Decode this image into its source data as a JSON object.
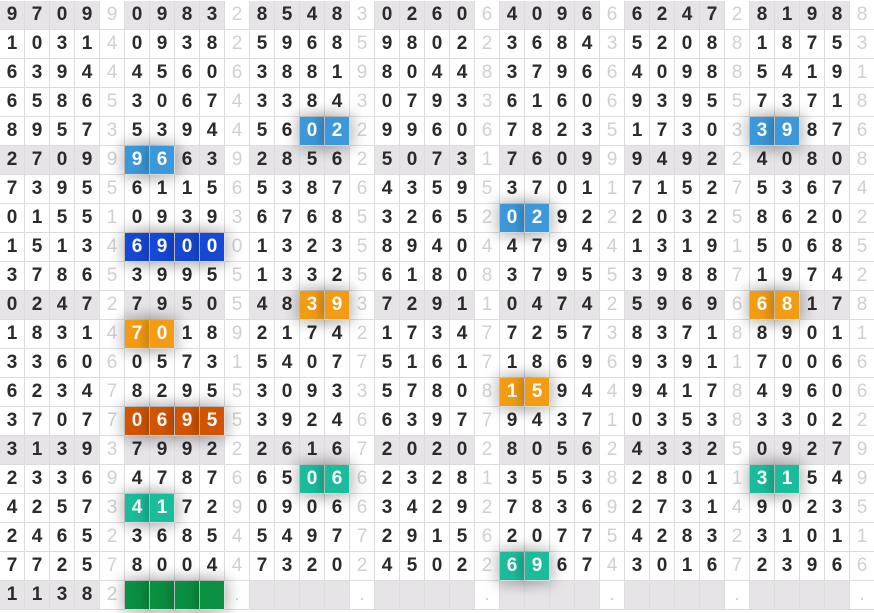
{
  "colors": {
    "blue": "#3a98db",
    "dark_blue": "#1648d8",
    "orange": "#f39c12",
    "dark_orange": "#d35400",
    "teal": "#1abc9c",
    "green": "#0b8f42",
    "band": "#e7e4e7"
  },
  "rows": [
    {
      "groups": [
        "9709",
        "0983",
        "8548",
        "0260",
        "4096",
        "6247",
        "8198"
      ],
      "seps": [
        "9",
        "2",
        "3",
        "6",
        "6",
        "2",
        "8"
      ],
      "band": true
    },
    {
      "groups": [
        "1031",
        "0938",
        "5968",
        "9802",
        "3684",
        "5208",
        "1875"
      ],
      "seps": [
        "4",
        "2",
        "5",
        "2",
        "3",
        "8",
        "3"
      ]
    },
    {
      "groups": [
        "6394",
        "4560",
        "3881",
        "8044",
        "3796",
        "4098",
        "5419"
      ],
      "seps": [
        "4",
        "6",
        "9",
        "8",
        "6",
        "8",
        "1"
      ]
    },
    {
      "groups": [
        "6586",
        "3067",
        "3384",
        "0793",
        "6160",
        "9395",
        "7371"
      ],
      "seps": [
        "5",
        "4",
        "3",
        "3",
        "6",
        "5",
        "8"
      ]
    },
    {
      "groups": [
        "8957",
        "5394",
        "5602",
        "9960",
        "7823",
        "1730",
        "3987"
      ],
      "seps": [
        "3",
        "4",
        "2",
        "6",
        "5",
        "3",
        "6"
      ]
    },
    {
      "groups": [
        "2709",
        "9663",
        "2856",
        "5073",
        "7609",
        "9492",
        "4080"
      ],
      "seps": [
        "9",
        "9",
        "2",
        "1",
        "9",
        "2",
        "8"
      ],
      "band": true
    },
    {
      "groups": [
        "7395",
        "6115",
        "5387",
        "4359",
        "3701",
        "7152",
        "5367"
      ],
      "seps": [
        "5",
        "6",
        "6",
        "5",
        "1",
        "7",
        "4"
      ]
    },
    {
      "groups": [
        "0155",
        "0939",
        "6768",
        "3265",
        "0292",
        "2032",
        "8620"
      ],
      "seps": [
        "1",
        "3",
        "5",
        "2",
        "2",
        "5",
        "2"
      ]
    },
    {
      "groups": [
        "1513",
        "6900",
        "1323",
        "8940",
        "4794",
        "1319",
        "5068"
      ],
      "seps": [
        "4",
        "0",
        "5",
        "4",
        "4",
        "1",
        "5"
      ]
    },
    {
      "groups": [
        "3786",
        "3995",
        "1332",
        "6180",
        "3795",
        "3988",
        "1974"
      ],
      "seps": [
        "5",
        "5",
        "5",
        "8",
        "5",
        "7",
        "2"
      ]
    },
    {
      "groups": [
        "0247",
        "7950",
        "4839",
        "7291",
        "0474",
        "5969",
        "6817"
      ],
      "seps": [
        "2",
        "5",
        "3",
        "1",
        "2",
        "6",
        "8"
      ],
      "band": true
    },
    {
      "groups": [
        "1831",
        "7018",
        "2174",
        "1734",
        "7257",
        "8371",
        "8901"
      ],
      "seps": [
        "4",
        "9",
        "2",
        "7",
        "3",
        "8",
        "1"
      ]
    },
    {
      "groups": [
        "3360",
        "0573",
        "5407",
        "5161",
        "1869",
        "9391",
        "7006"
      ],
      "seps": [
        "6",
        "1",
        "7",
        "7",
        "6",
        "1",
        "6"
      ]
    },
    {
      "groups": [
        "6234",
        "8295",
        "3093",
        "5780",
        "1594",
        "9417",
        "4960"
      ],
      "seps": [
        "7",
        "5",
        "3",
        "8",
        "4",
        "8",
        "6"
      ]
    },
    {
      "groups": [
        "3707",
        "0695",
        "3924",
        "6397",
        "9437",
        "0353",
        "3302"
      ],
      "seps": [
        "7",
        "5",
        "6",
        "7",
        "1",
        "8",
        "2"
      ]
    },
    {
      "groups": [
        "3139",
        "7992",
        "2616",
        "2020",
        "8056",
        "4332",
        "0927"
      ],
      "seps": [
        "3",
        "2",
        "7",
        "2",
        "2",
        "5",
        "9"
      ],
      "band": true
    },
    {
      "groups": [
        "2336",
        "4787",
        "6506",
        "2328",
        "3553",
        "2801",
        "3154"
      ],
      "seps": [
        "9",
        "6",
        "6",
        "1",
        "8",
        "1",
        "9"
      ]
    },
    {
      "groups": [
        "4257",
        "4172",
        "0906",
        "3429",
        "7836",
        "2731",
        "9023"
      ],
      "seps": [
        "3",
        "9",
        "6",
        "2",
        "9",
        "4",
        "5"
      ]
    },
    {
      "groups": [
        "2465",
        "3685",
        "5497",
        "2915",
        "2077",
        "4283",
        "3101"
      ],
      "seps": [
        "2",
        "4",
        "7",
        "6",
        "5",
        "2",
        "1"
      ]
    },
    {
      "groups": [
        "7725",
        "8004",
        "7320",
        "4502",
        "6967",
        "3016",
        "2396"
      ],
      "seps": [
        "7",
        "4",
        "2",
        "2",
        "4",
        "7",
        "6"
      ]
    },
    {
      "groups": [
        "1138",
        "    ",
        "    ",
        "    ",
        "    ",
        "    ",
        "    "
      ],
      "seps": [
        "2",
        ".",
        ".",
        ".",
        ".",
        ".",
        "."
      ],
      "band": true
    }
  ],
  "highlights": [
    {
      "row": 4,
      "group": 2,
      "from": 2,
      "len": 2,
      "color": "blue"
    },
    {
      "row": 4,
      "group": 6,
      "from": 0,
      "len": 2,
      "color": "blue"
    },
    {
      "row": 5,
      "group": 1,
      "from": 0,
      "len": 2,
      "color": "blue"
    },
    {
      "row": 7,
      "group": 4,
      "from": 0,
      "len": 2,
      "color": "blue"
    },
    {
      "row": 8,
      "group": 1,
      "from": 0,
      "len": 4,
      "color": "dark_blue"
    },
    {
      "row": 10,
      "group": 2,
      "from": 2,
      "len": 2,
      "color": "orange"
    },
    {
      "row": 10,
      "group": 6,
      "from": 0,
      "len": 2,
      "color": "orange"
    },
    {
      "row": 11,
      "group": 1,
      "from": 0,
      "len": 2,
      "color": "orange"
    },
    {
      "row": 13,
      "group": 4,
      "from": 0,
      "len": 2,
      "color": "orange"
    },
    {
      "row": 14,
      "group": 1,
      "from": 0,
      "len": 4,
      "color": "dark_orange"
    },
    {
      "row": 16,
      "group": 2,
      "from": 2,
      "len": 2,
      "color": "teal"
    },
    {
      "row": 16,
      "group": 6,
      "from": 0,
      "len": 2,
      "color": "teal"
    },
    {
      "row": 17,
      "group": 1,
      "from": 0,
      "len": 2,
      "color": "teal"
    },
    {
      "row": 19,
      "group": 4,
      "from": 0,
      "len": 2,
      "color": "teal"
    },
    {
      "row": 20,
      "group": 1,
      "from": 0,
      "len": 4,
      "color": "green"
    }
  ]
}
